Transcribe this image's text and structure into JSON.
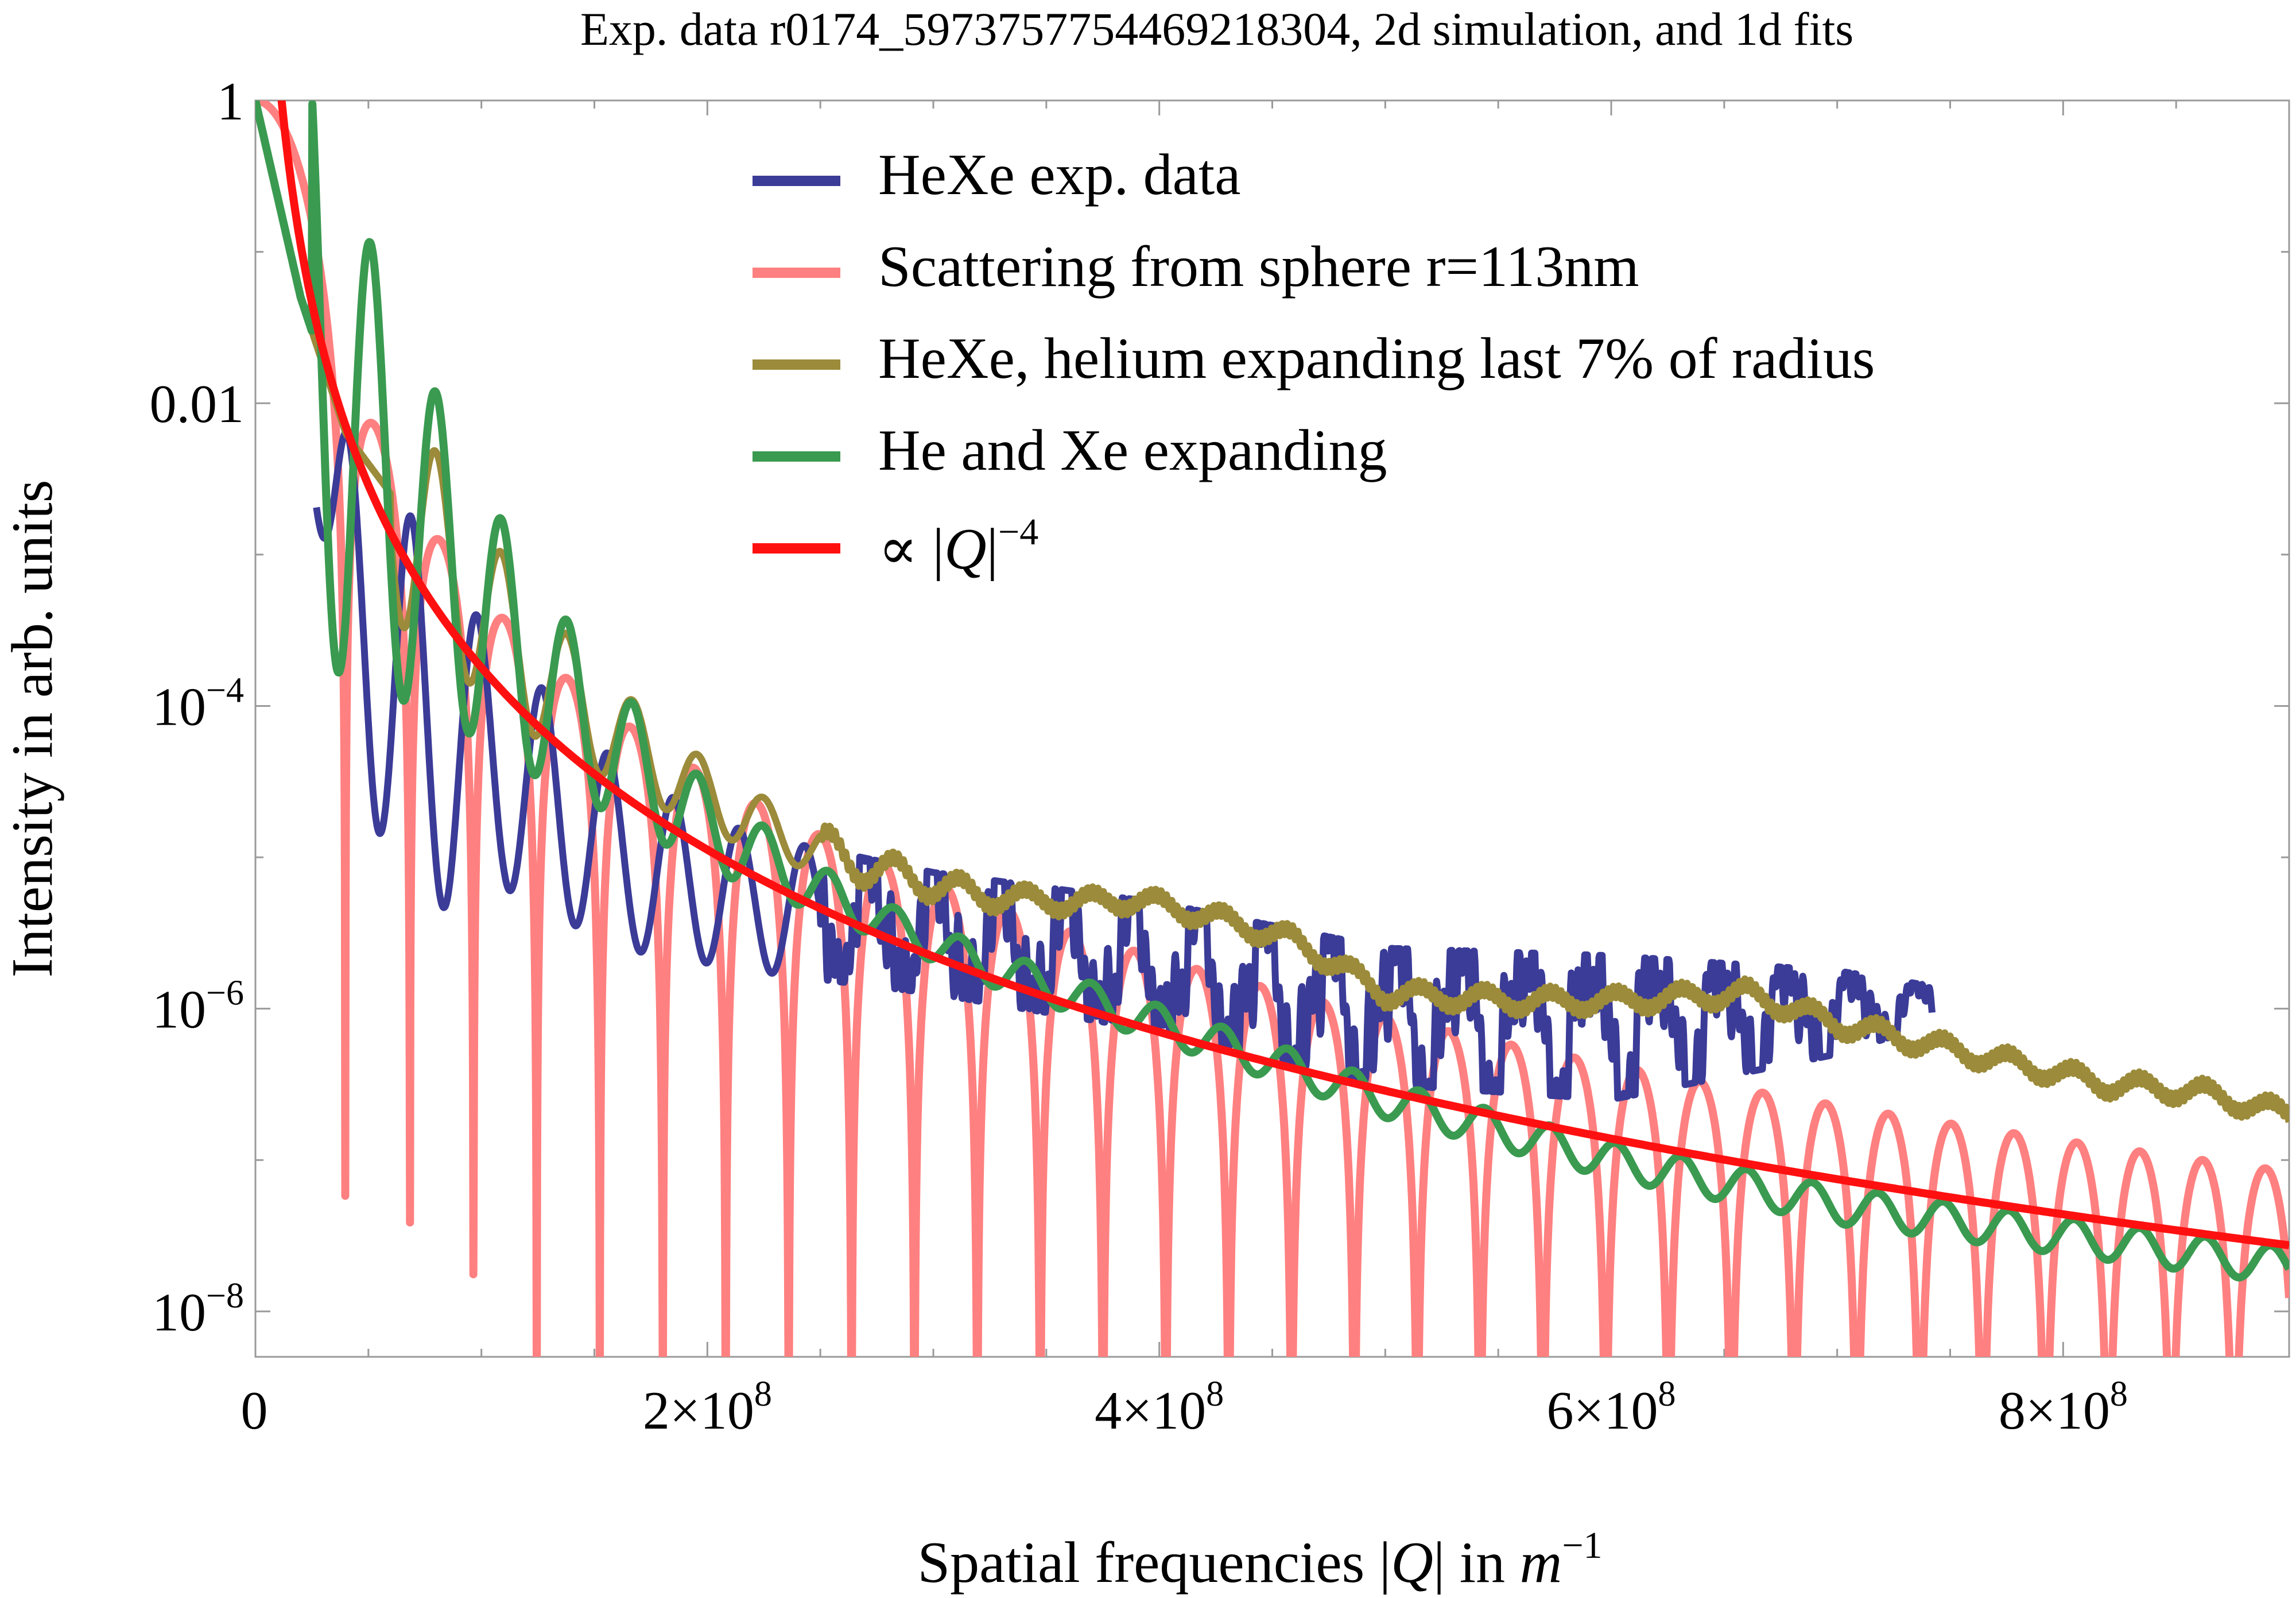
{
  "chart_data": {
    "type": "line",
    "title": "Exp. data r0174_5973757754469218304, 2d simulation, and 1d fits",
    "xlabel": {
      "prefix": "Spatial frequencies |",
      "q": "Q",
      "mid": "| in ",
      "m": "m",
      "exp": "−1"
    },
    "ylabel": "Intensity in arb. units",
    "x_range": [
      0,
      900000000
    ],
    "y_range_log10": [
      -8.3,
      0
    ],
    "y_scale": "log",
    "grid": false,
    "legend_position": "top-center",
    "x_ticks": [
      {
        "value": 0,
        "mant": "0",
        "exp": ""
      },
      {
        "value": 200000000,
        "mant": "2×10",
        "exp": "8"
      },
      {
        "value": 400000000,
        "mant": "4×10",
        "exp": "8"
      },
      {
        "value": 600000000,
        "mant": "6×10",
        "exp": "8"
      },
      {
        "value": 800000000,
        "mant": "8×10",
        "exp": "8"
      }
    ],
    "y_ticks": [
      {
        "log": 0,
        "mant": "1",
        "exp": ""
      },
      {
        "log": -2,
        "mant": "0.01",
        "exp": ""
      },
      {
        "log": -4,
        "mant": "10",
        "exp": "−4"
      },
      {
        "log": -6,
        "mant": "10",
        "exp": "−6"
      },
      {
        "log": -8,
        "mant": "10",
        "exp": "−8"
      }
    ],
    "series": [
      {
        "id": "exp",
        "name": "HeXe exp. data",
        "color": "#3b3b98",
        "x_start": 27000000,
        "x_end": 742000000,
        "env_peak": [
          [
            27000000,
            -2.25
          ],
          [
            50000000,
            -2.15
          ],
          [
            80000000,
            -3.1
          ],
          [
            110000000,
            -3.6
          ],
          [
            140000000,
            -4.1
          ],
          [
            170000000,
            -4.5
          ],
          [
            220000000,
            -4.85
          ],
          [
            300000000,
            -5.1
          ],
          [
            400000000,
            -5.3
          ],
          [
            500000000,
            -5.6
          ],
          [
            600000000,
            -5.65
          ],
          [
            700000000,
            -5.75
          ],
          [
            742000000,
            -5.85
          ]
        ],
        "env_min": [
          [
            27000000,
            -2.7
          ],
          [
            40000000,
            -4.3
          ],
          [
            70000000,
            -5.4
          ],
          [
            110000000,
            -5.2
          ],
          [
            160000000,
            -5.6
          ],
          [
            220000000,
            -5.75
          ],
          [
            300000000,
            -5.9
          ],
          [
            400000000,
            -6.15
          ],
          [
            500000000,
            -6.5
          ],
          [
            600000000,
            -6.6
          ],
          [
            700000000,
            -6.3
          ],
          [
            742000000,
            -6.1
          ]
        ],
        "period": 29000000
      },
      {
        "id": "sphere",
        "name": "Scattering from sphere r=113nm",
        "color": "#ff8080",
        "radius_nm": 113
      },
      {
        "id": "hexe_shell",
        "name": "HeXe, helium expanding last 7% of radius",
        "color": "#9b8b3a",
        "level": [
          [
            0,
            0
          ],
          [
            20000000,
            -1.3
          ],
          [
            40000000,
            -2.2
          ],
          [
            80000000,
            -3.0
          ],
          [
            120000000,
            -3.7
          ],
          [
            160000000,
            -4.2
          ],
          [
            200000000,
            -4.6
          ],
          [
            240000000,
            -4.9
          ],
          [
            280000000,
            -5.1
          ],
          [
            320000000,
            -5.25
          ],
          [
            360000000,
            -5.3
          ],
          [
            390000000,
            -5.28
          ],
          [
            420000000,
            -5.38
          ],
          [
            460000000,
            -5.55
          ],
          [
            500000000,
            -5.9
          ],
          [
            560000000,
            -5.95
          ],
          [
            600000000,
            -5.95
          ],
          [
            660000000,
            -5.9
          ],
          [
            700000000,
            -6.1
          ],
          [
            760000000,
            -6.3
          ],
          [
            820000000,
            -6.5
          ],
          [
            860000000,
            -6.55
          ],
          [
            900000000,
            -6.7
          ]
        ]
      },
      {
        "id": "he_xe",
        "name": "He and Xe expanding",
        "color": "#3a9a50",
        "level": [
          [
            0,
            0
          ],
          [
            20000000,
            -1.3
          ],
          [
            40000000,
            -2.2
          ],
          [
            80000000,
            -3.0
          ],
          [
            120000000,
            -3.75
          ],
          [
            160000000,
            -4.3
          ],
          [
            200000000,
            -4.8
          ],
          [
            260000000,
            -5.3
          ],
          [
            320000000,
            -5.7
          ],
          [
            400000000,
            -6.1
          ],
          [
            500000000,
            -6.6
          ],
          [
            600000000,
            -7.0
          ],
          [
            700000000,
            -7.3
          ],
          [
            800000000,
            -7.5
          ],
          [
            900000000,
            -7.7
          ]
        ]
      },
      {
        "id": "powerlaw",
        "name": "∝ |Q|⁻⁴",
        "legend_label": {
          "prefix": "∝ |",
          "q": "Q",
          "mid": "|",
          "exp": "−4"
        },
        "color": "#ff1010",
        "exponent": -4,
        "anchor": {
          "x": 200000000,
          "log10_y": -4.95
        }
      }
    ]
  }
}
